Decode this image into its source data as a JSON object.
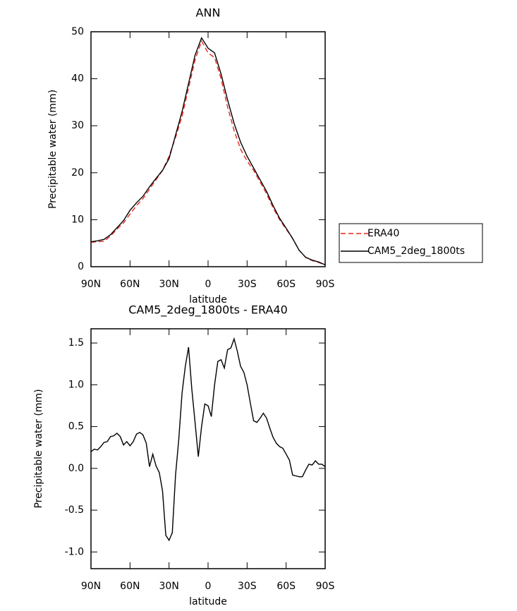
{
  "chart_data": [
    {
      "type": "line",
      "title": "ANN",
      "xlabel": "latitude",
      "ylabel": "Precipitable water (mm)",
      "x": [
        90,
        85,
        80,
        75,
        70,
        65,
        60,
        55,
        50,
        45,
        40,
        35,
        30,
        25,
        20,
        15,
        10,
        5,
        0,
        -5,
        -10,
        -15,
        -20,
        -25,
        -30,
        -35,
        -40,
        -45,
        -50,
        -55,
        -60,
        -65,
        -70,
        -75,
        -80,
        -85,
        -90
      ],
      "xlim": [
        90,
        -90
      ],
      "xticks": [
        {
          "value": 90,
          "label": "90N"
        },
        {
          "value": 60,
          "label": "60N"
        },
        {
          "value": 30,
          "label": "30N"
        },
        0,
        {
          "value": -30,
          "label": "30S"
        },
        {
          "value": -60,
          "label": "60S"
        },
        {
          "value": -90,
          "label": "90S"
        }
      ],
      "ylim": [
        0,
        50
      ],
      "yticks": [
        0,
        10,
        20,
        30,
        40,
        50
      ],
      "legend": "outside-right",
      "series": [
        {
          "name": "ERA40",
          "color": "#e8261f",
          "linestyle": "dashed",
          "values": [
            5.2,
            5.3,
            5.4,
            6.5,
            8,
            9.3,
            11.2,
            13,
            14.5,
            16.5,
            18.5,
            20.5,
            23.5,
            27.5,
            32,
            38,
            44,
            48,
            45.5,
            44.5,
            40,
            34,
            29,
            25,
            22.5,
            20.5,
            18,
            15.5,
            12.5,
            10,
            8,
            6,
            3.5,
            2,
            1.3,
            0.9,
            0.4
          ]
        },
        {
          "name": "CAM5_2deg_1800ts",
          "color": "#000000",
          "linestyle": "solid",
          "values": [
            5.3,
            5.5,
            5.8,
            6.8,
            8.3,
            9.8,
            12,
            13.6,
            15,
            17,
            18.8,
            20.5,
            23,
            28,
            33,
            39,
            45,
            48.7,
            46.5,
            45.5,
            41,
            35.5,
            30.5,
            26.5,
            23.5,
            21,
            18.5,
            16,
            13,
            10.3,
            8.2,
            6,
            3.5,
            2,
            1.4,
            1,
            0.4
          ]
        }
      ]
    },
    {
      "type": "line",
      "title": "CAM5_2deg_1800ts - ERA40",
      "xlabel": "latitude",
      "ylabel": "Precipitable water (mm)",
      "x": [
        90,
        87.5,
        85,
        82.5,
        80,
        77.5,
        75,
        72.5,
        70,
        67.5,
        65,
        62.5,
        60,
        57.5,
        55,
        52.5,
        50,
        47.5,
        45,
        42.5,
        40,
        37.5,
        35,
        32.5,
        30,
        27.5,
        25,
        22.5,
        20,
        17.5,
        15,
        12.5,
        10,
        7.5,
        5,
        2.5,
        0,
        -2.5,
        -5,
        -7.5,
        -10,
        -12.5,
        -15,
        -17.5,
        -20,
        -22.5,
        -25,
        -27.5,
        -30,
        -32.5,
        -35,
        -37.5,
        -40,
        -42.5,
        -45,
        -47.5,
        -50,
        -52.5,
        -55,
        -57.5,
        -60,
        -62.5,
        -65,
        -67.5,
        -70,
        -72.5,
        -75,
        -77.5,
        -80,
        -82.5,
        -85,
        -87.5,
        -90
      ],
      "xlim": [
        90,
        -90
      ],
      "xticks": [
        {
          "value": 90,
          "label": "90N"
        },
        {
          "value": 60,
          "label": "60N"
        },
        {
          "value": 30,
          "label": "30N"
        },
        0,
        {
          "value": -30,
          "label": "30S"
        },
        {
          "value": -60,
          "label": "60S"
        },
        {
          "value": -90,
          "label": "90S"
        }
      ],
      "ylim": [
        -1.2,
        1.67
      ],
      "yticks": [
        {
          "value": -1,
          "label": "-1.0"
        },
        -0.5,
        {
          "value": 0,
          "label": "0.0"
        },
        0.5,
        {
          "value": 1,
          "label": "1.0"
        },
        1.5
      ],
      "color": "#000000",
      "values": [
        0.2,
        0.23,
        0.22,
        0.26,
        0.31,
        0.32,
        0.38,
        0.39,
        0.42,
        0.38,
        0.28,
        0.32,
        0.27,
        0.32,
        0.41,
        0.43,
        0.4,
        0.3,
        0.02,
        0.17,
        0.03,
        -0.05,
        -0.27,
        -0.8,
        -0.86,
        -0.77,
        -0.08,
        0.35,
        0.9,
        1.22,
        1.45,
        0.95,
        0.55,
        0.14,
        0.5,
        0.77,
        0.75,
        0.62,
        1.0,
        1.28,
        1.3,
        1.2,
        1.42,
        1.44,
        1.55,
        1.4,
        1.22,
        1.15,
        1.0,
        0.78,
        0.57,
        0.55,
        0.6,
        0.66,
        0.6,
        0.48,
        0.37,
        0.3,
        0.26,
        0.24,
        0.17,
        0.1,
        -0.08,
        -0.09,
        -0.1,
        -0.1,
        -0.02,
        0.05,
        0.04,
        0.09,
        0.05,
        0.05,
        0.02
      ]
    }
  ]
}
